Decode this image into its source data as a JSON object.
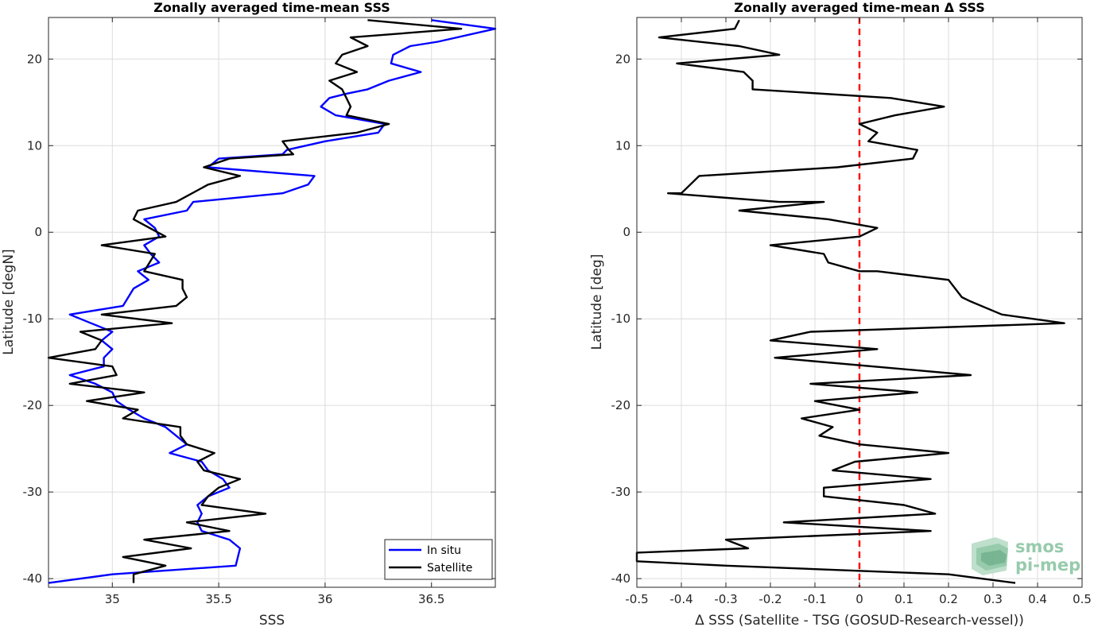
{
  "chart_data": [
    {
      "type": "line",
      "title": "Zonally averaged time-mean SSS",
      "xlabel": "SSS",
      "ylabel": "Latitude [degN]",
      "xlim": [
        34.7,
        36.8
      ],
      "ylim": [
        -41,
        24.8
      ],
      "xticks": [
        35,
        35.5,
        36,
        36.5
      ],
      "xtick_labels": [
        "35",
        "35.5",
        "36",
        "36.5"
      ],
      "yticks": [
        -40,
        -30,
        -20,
        -10,
        0,
        10,
        20
      ],
      "ytick_labels": [
        "-40",
        "-30",
        "-20",
        "-10",
        "0",
        "10",
        "20"
      ],
      "grid": true,
      "legend": "bottom-right",
      "series": [
        {
          "name": "In situ",
          "color": "#0000ff",
          "points": [
            [
              36.5,
              24.5
            ],
            [
              36.8,
              23.5
            ],
            [
              36.53,
              22
            ],
            [
              36.4,
              21.5
            ],
            [
              36.32,
              20.5
            ],
            [
              36.31,
              19.5
            ],
            [
              36.45,
              18.5
            ],
            [
              36.3,
              17.5
            ],
            [
              36.2,
              16.5
            ],
            [
              36.1,
              16
            ],
            [
              36.02,
              15.5
            ],
            [
              35.98,
              14.5
            ],
            [
              36.05,
              13.5
            ],
            [
              36.28,
              12.5
            ],
            [
              36.25,
              11.5
            ],
            [
              36.0,
              10.5
            ],
            [
              35.82,
              9.5
            ],
            [
              35.8,
              9
            ],
            [
              35.5,
              8.5
            ],
            [
              35.45,
              7.5
            ],
            [
              35.95,
              6.5
            ],
            [
              35.92,
              5.5
            ],
            [
              35.8,
              4.5
            ],
            [
              35.38,
              3.5
            ],
            [
              35.35,
              2.5
            ],
            [
              35.15,
              1.5
            ],
            [
              35.2,
              0.5
            ],
            [
              35.22,
              -0.5
            ],
            [
              35.15,
              -1.5
            ],
            [
              35.18,
              -2.5
            ],
            [
              35.22,
              -3.5
            ],
            [
              35.12,
              -4.5
            ],
            [
              35.17,
              -5.5
            ],
            [
              35.1,
              -6.5
            ],
            [
              35.05,
              -8.5
            ],
            [
              34.8,
              -9.5
            ],
            [
              34.9,
              -10.5
            ],
            [
              35.0,
              -11.5
            ],
            [
              34.95,
              -12.5
            ],
            [
              35.0,
              -13.5
            ],
            [
              34.96,
              -14.5
            ],
            [
              34.96,
              -15.5
            ],
            [
              34.8,
              -16.5
            ],
            [
              34.92,
              -17.5
            ],
            [
              35.0,
              -18.5
            ],
            [
              35.02,
              -19.5
            ],
            [
              35.08,
              -20.5
            ],
            [
              35.15,
              -21.5
            ],
            [
              35.25,
              -22.5
            ],
            [
              35.3,
              -23.5
            ],
            [
              35.35,
              -24.5
            ],
            [
              35.27,
              -25.5
            ],
            [
              35.42,
              -26.5
            ],
            [
              35.45,
              -27.5
            ],
            [
              35.52,
              -28.5
            ],
            [
              35.55,
              -29.5
            ],
            [
              35.45,
              -30.5
            ],
            [
              35.4,
              -31.5
            ],
            [
              35.42,
              -32.5
            ],
            [
              35.4,
              -33.5
            ],
            [
              35.42,
              -34.5
            ],
            [
              35.55,
              -35.5
            ],
            [
              35.6,
              -36.5
            ],
            [
              35.58,
              -38.5
            ],
            [
              35.0,
              -39.5
            ],
            [
              34.7,
              -40.5
            ]
          ]
        },
        {
          "name": "Satellite",
          "color": "#000000",
          "points": [
            [
              36.2,
              24.5
            ],
            [
              36.64,
              23.5
            ],
            [
              36.12,
              22.5
            ],
            [
              36.2,
              21.5
            ],
            [
              36.08,
              20.5
            ],
            [
              36.05,
              19.5
            ],
            [
              36.15,
              18.5
            ],
            [
              36.02,
              17.5
            ],
            [
              36.08,
              16.5
            ],
            [
              36.1,
              15.5
            ],
            [
              36.12,
              14.5
            ],
            [
              36.1,
              13.5
            ],
            [
              36.3,
              12.5
            ],
            [
              36.15,
              11.5
            ],
            [
              35.8,
              10.5
            ],
            [
              35.83,
              9.5
            ],
            [
              35.85,
              9
            ],
            [
              35.55,
              8.5
            ],
            [
              35.43,
              7.5
            ],
            [
              35.6,
              6.5
            ],
            [
              35.45,
              5.5
            ],
            [
              35.3,
              3.5
            ],
            [
              35.12,
              2.5
            ],
            [
              35.1,
              1.5
            ],
            [
              35.25,
              -0.5
            ],
            [
              34.95,
              -1.5
            ],
            [
              35.2,
              -2.5
            ],
            [
              35.15,
              -4.5
            ],
            [
              35.33,
              -5.5
            ],
            [
              35.33,
              -6.5
            ],
            [
              35.35,
              -7.5
            ],
            [
              35.3,
              -8.5
            ],
            [
              34.95,
              -9.5
            ],
            [
              35.28,
              -10.5
            ],
            [
              34.85,
              -11.5
            ],
            [
              34.95,
              -12.5
            ],
            [
              34.92,
              -13.5
            ],
            [
              34.7,
              -14.5
            ],
            [
              35.0,
              -15.5
            ],
            [
              35.02,
              -16.5
            ],
            [
              34.8,
              -17.5
            ],
            [
              35.15,
              -18.5
            ],
            [
              34.88,
              -19.5
            ],
            [
              35.12,
              -20.5
            ],
            [
              35.05,
              -21.5
            ],
            [
              35.32,
              -22.5
            ],
            [
              35.32,
              -23.5
            ],
            [
              35.35,
              -24.5
            ],
            [
              35.48,
              -25.5
            ],
            [
              35.4,
              -26.5
            ],
            [
              35.43,
              -27.5
            ],
            [
              35.6,
              -28.5
            ],
            [
              35.5,
              -29.5
            ],
            [
              35.45,
              -30.5
            ],
            [
              35.42,
              -31.5
            ],
            [
              35.72,
              -32.5
            ],
            [
              35.35,
              -33.5
            ],
            [
              35.55,
              -34.5
            ],
            [
              35.15,
              -35.5
            ],
            [
              35.37,
              -36.5
            ],
            [
              35.05,
              -37.5
            ],
            [
              35.25,
              -38.5
            ],
            [
              35.1,
              -39.5
            ],
            [
              35.1,
              -40.5
            ]
          ]
        }
      ]
    },
    {
      "type": "line",
      "title": "Zonally averaged time-mean Δ SSS",
      "xlabel": "Δ SSS (Satellite - TSG (GOSUD-Research-vessel))",
      "ylabel": "Latitude [deg]",
      "xlim": [
        -0.5,
        0.5
      ],
      "ylim": [
        -41,
        24.8
      ],
      "xticks": [
        -0.5,
        -0.4,
        -0.3,
        -0.2,
        -0.1,
        0,
        0.1,
        0.2,
        0.3,
        0.4,
        0.5
      ],
      "xtick_labels": [
        "-0.5",
        "-0.4",
        "-0.3",
        "-0.2",
        "-0.1",
        "0",
        "0.1",
        "0.2",
        "0.3",
        "0.4",
        "0.5"
      ],
      "yticks": [
        -40,
        -30,
        -20,
        -10,
        0,
        10,
        20
      ],
      "ytick_labels": [
        "-40",
        "-30",
        "-20",
        "-10",
        "0",
        "10",
        "20"
      ],
      "grid": true,
      "reference_line": {
        "x": 0,
        "color": "#ff0000",
        "style": "dashed"
      },
      "series": [
        {
          "color": "#000000",
          "points": [
            [
              -0.27,
              24.5
            ],
            [
              -0.28,
              23.5
            ],
            [
              -0.45,
              22.5
            ],
            [
              -0.27,
              21.5
            ],
            [
              -0.18,
              20.5
            ],
            [
              -0.41,
              19.5
            ],
            [
              -0.26,
              18.5
            ],
            [
              -0.24,
              17.5
            ],
            [
              -0.24,
              16.5
            ],
            [
              0.07,
              15.5
            ],
            [
              0.19,
              14.5
            ],
            [
              0.08,
              13.5
            ],
            [
              0.0,
              12.5
            ],
            [
              0.04,
              11.5
            ],
            [
              0.02,
              10.5
            ],
            [
              0.13,
              9.5
            ],
            [
              0.12,
              8.5
            ],
            [
              -0.05,
              7.5
            ],
            [
              -0.36,
              6.5
            ],
            [
              -0.38,
              5.5
            ],
            [
              -0.4,
              4.5
            ],
            [
              -0.43,
              4.5
            ],
            [
              -0.18,
              3.5
            ],
            [
              -0.08,
              3.5
            ],
            [
              -0.27,
              2.5
            ],
            [
              -0.07,
              1.5
            ],
            [
              0.04,
              0.5
            ],
            [
              0.0,
              -0.5
            ],
            [
              -0.2,
              -1.5
            ],
            [
              -0.08,
              -2.5
            ],
            [
              -0.07,
              -3.5
            ],
            [
              0.0,
              -4.5
            ],
            [
              0.04,
              -4.5
            ],
            [
              0.2,
              -5.5
            ],
            [
              0.23,
              -7.5
            ],
            [
              0.25,
              -8.0
            ],
            [
              0.32,
              -9.5
            ],
            [
              0.46,
              -10.5
            ],
            [
              -0.11,
              -11.5
            ],
            [
              -0.2,
              -12.5
            ],
            [
              0.04,
              -13.5
            ],
            [
              -0.19,
              -14.5
            ],
            [
              0.25,
              -16.5
            ],
            [
              -0.11,
              -17.5
            ],
            [
              0.13,
              -18.5
            ],
            [
              -0.1,
              -19.5
            ],
            [
              0.0,
              -20.5
            ],
            [
              -0.13,
              -21.5
            ],
            [
              -0.06,
              -22.5
            ],
            [
              -0.09,
              -23.5
            ],
            [
              0.0,
              -24.5
            ],
            [
              0.2,
              -25.5
            ],
            [
              -0.01,
              -26.5
            ],
            [
              -0.06,
              -27.5
            ],
            [
              0.16,
              -28.5
            ],
            [
              -0.08,
              -29.5
            ],
            [
              -0.08,
              -30.5
            ],
            [
              0.1,
              -31.5
            ],
            [
              0.17,
              -32.5
            ],
            [
              -0.17,
              -33.5
            ],
            [
              0.16,
              -34.5
            ],
            [
              -0.3,
              -35.5
            ],
            [
              -0.25,
              -36.5
            ],
            [
              -0.5,
              -37
            ],
            [
              -0.5,
              -38
            ],
            [
              -0.3,
              -38.5
            ],
            [
              0.2,
              -39.5
            ],
            [
              0.35,
              -40.5
            ]
          ]
        }
      ]
    }
  ],
  "legend": {
    "items": [
      "In situ",
      "Satellite"
    ]
  },
  "logo": {
    "line1": "smos",
    "line2": "pi-mep"
  }
}
